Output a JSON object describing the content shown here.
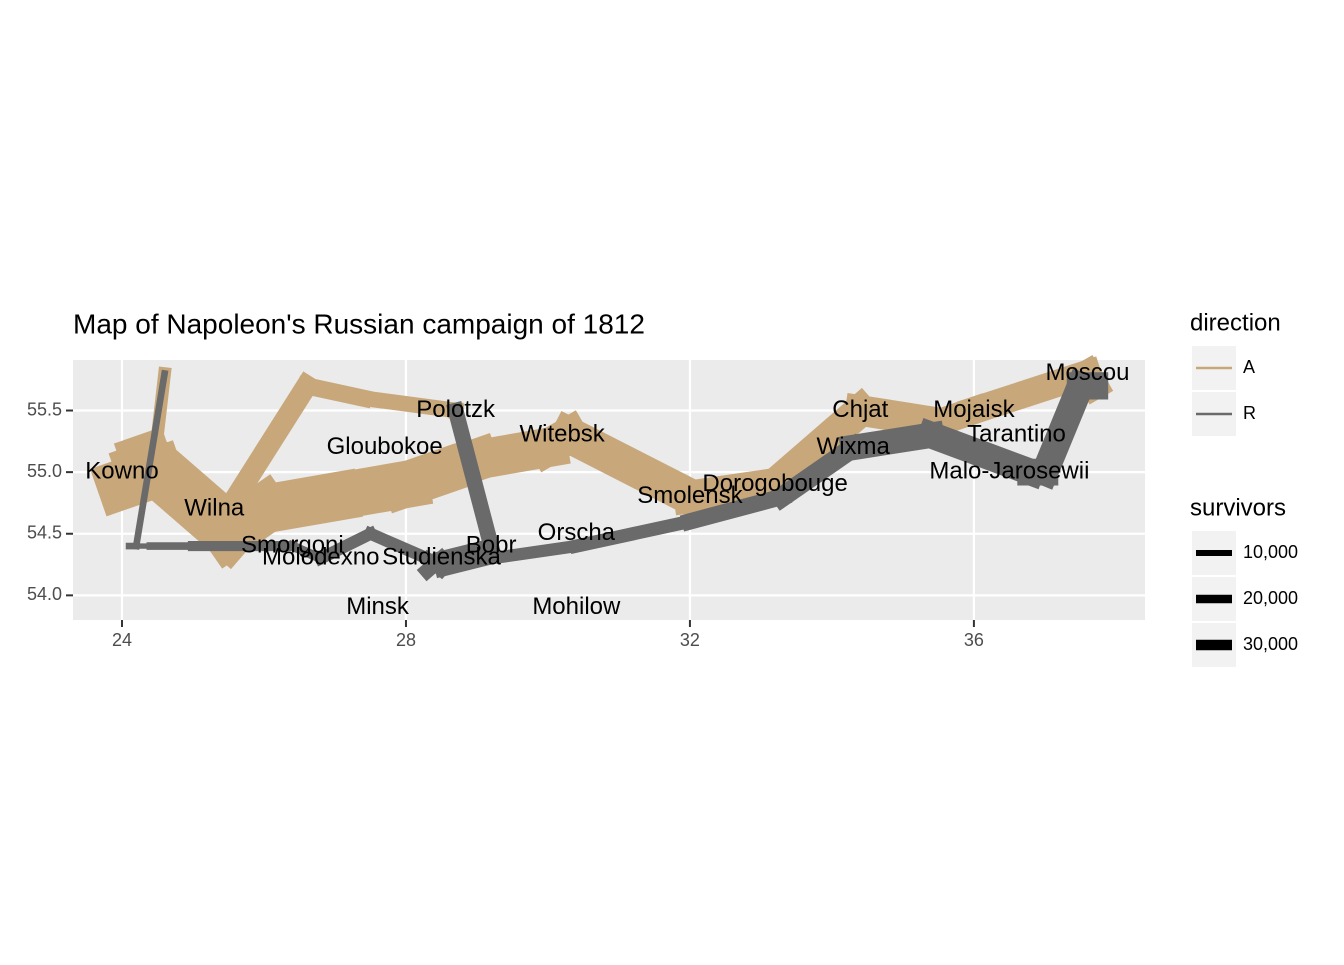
{
  "chart_data": {
    "type": "path",
    "title": "Map of Napoleon's Russian campaign of 1812",
    "xlim": [
      23.31,
      38.41
    ],
    "ylim": [
      53.8,
      55.91
    ],
    "xticks": [
      24,
      28,
      32,
      36
    ],
    "yticks": [
      {
        "value": 54,
        "label": "54.0"
      },
      54.5,
      {
        "value": 55,
        "label": "55.0"
      },
      55.5
    ],
    "grid": true,
    "direction_legend": {
      "title": "direction",
      "entries": [
        {
          "name": "A",
          "color": "#c8a87b"
        },
        {
          "name": "R",
          "color": "#6a6a6a"
        }
      ]
    },
    "size_legend": {
      "title": "survivors",
      "breaks": [
        {
          "value": 10000,
          "label": "10,000"
        },
        {
          "value": 20000,
          "label": "20,000"
        },
        {
          "value": 30000,
          "label": "30,000"
        }
      ]
    },
    "groups": [
      {
        "long": [
          24.0,
          24.5,
          25.5,
          26.0,
          27.0,
          28.0,
          28.5,
          29.0,
          30.0,
          30.3,
          32.0,
          33.2,
          34.4,
          35.5,
          36.0,
          37.6,
          37.7,
          37.5,
          37.0,
          36.8,
          35.4,
          34.3,
          33.3,
          32.0,
          30.4,
          29.2,
          28.5,
          28.3,
          27.5,
          26.8,
          26.4,
          25.0,
          24.4,
          24.2,
          24.1
        ],
        "lat": [
          54.9,
          55.0,
          54.5,
          54.7,
          54.8,
          54.9,
          55.0,
          55.1,
          55.2,
          55.3,
          54.8,
          54.9,
          55.5,
          55.4,
          55.5,
          55.8,
          55.7,
          55.7,
          55.0,
          55.0,
          55.3,
          55.2,
          54.8,
          54.6,
          54.4,
          54.3,
          54.2,
          54.3,
          54.5,
          54.3,
          54.4,
          54.4,
          54.4,
          54.4,
          54.4
        ],
        "survivors": [
          340000,
          340000,
          340000,
          320000,
          300000,
          280000,
          240000,
          210000,
          180000,
          175000,
          145000,
          140000,
          127100,
          100000,
          100000,
          100000,
          100000,
          98000,
          97000,
          96000,
          87000,
          55000,
          37000,
          24000,
          20000,
          20000,
          20000,
          20000,
          20000,
          12000,
          14000,
          8000,
          4000,
          4000,
          4000
        ],
        "direction": [
          "A",
          "A",
          "A",
          "A",
          "A",
          "A",
          "A",
          "A",
          "A",
          "A",
          "A",
          "A",
          "A",
          "A",
          "A",
          "A",
          "R",
          "R",
          "R",
          "R",
          "R",
          "R",
          "R",
          "R",
          "R",
          "R",
          "R",
          "R",
          "R",
          "R",
          "R",
          "R",
          "R",
          "R",
          "R"
        ]
      },
      {
        "long": [
          24.0,
          24.5,
          25.5,
          26.6,
          27.4,
          28.7,
          28.7,
          29.2,
          28.5,
          28.3
        ],
        "lat": [
          55.1,
          55.2,
          54.7,
          55.7,
          55.6,
          55.5,
          55.5,
          54.4,
          54.3,
          54.2
        ],
        "survivors": [
          60000,
          60000,
          60000,
          40000,
          33000,
          33000,
          33000,
          30000,
          30000,
          28000
        ],
        "direction": [
          "A",
          "A",
          "A",
          "A",
          "A",
          "A",
          "R",
          "R",
          "R",
          "R"
        ]
      },
      {
        "long": [
          24.0,
          24.5,
          24.6,
          24.6,
          24.2,
          24.1
        ],
        "lat": [
          55.2,
          55.3,
          55.8,
          55.8,
          54.4,
          54.4
        ],
        "survivors": [
          22000,
          22000,
          6000,
          6000,
          6000,
          6000
        ],
        "direction": [
          "A",
          "A",
          "A",
          "R",
          "R",
          "R"
        ]
      }
    ],
    "cities": {
      "names": [
        "Kowno",
        "Wilna",
        "Smorgoni",
        "Molodexno",
        "Gloubokoe",
        "Minsk",
        "Studienska",
        "Polotzk",
        "Bobr",
        "Witebsk",
        "Orscha",
        "Mohilow",
        "Smolensk",
        "Dorogobouge",
        "Wixma",
        "Chjat",
        "Mojaisk",
        "Moscou",
        "Tarantino",
        "Malo-Jarosewii"
      ],
      "long": [
        24.0,
        25.3,
        26.4,
        26.8,
        27.7,
        27.6,
        28.5,
        28.7,
        29.2,
        30.2,
        30.4,
        30.4,
        32.0,
        33.2,
        34.3,
        34.4,
        36.0,
        37.6,
        36.6,
        36.5
      ],
      "lat": [
        55.0,
        54.7,
        54.4,
        54.3,
        55.2,
        53.9,
        54.3,
        55.5,
        54.4,
        55.3,
        54.5,
        53.9,
        54.8,
        54.9,
        55.2,
        55.5,
        55.5,
        55.8,
        55.3,
        55.0
      ]
    }
  }
}
